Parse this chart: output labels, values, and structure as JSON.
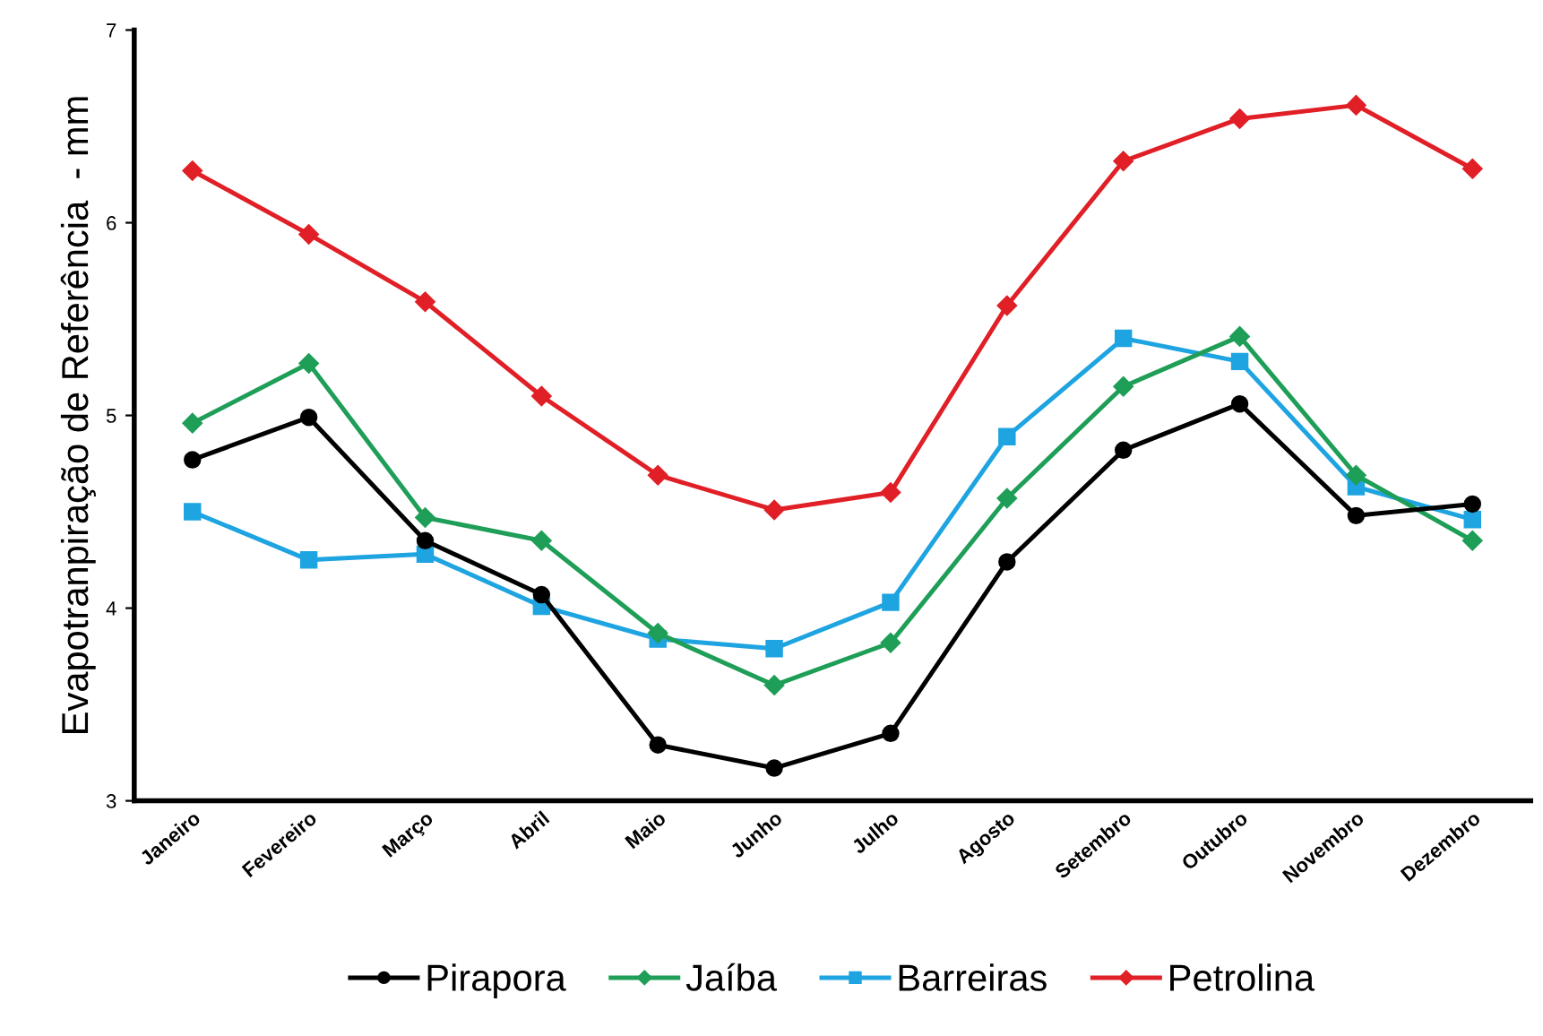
{
  "chart_data": {
    "type": "line",
    "ylabel": "Evapotranpiração de Referência  - mm",
    "categories": [
      "Janeiro",
      "Fevereiro",
      "Março",
      "Abril",
      "Maio",
      "Junho",
      "Julho",
      "Agosto",
      "Setembro",
      "Outubro",
      "Novembro",
      "Dezembro"
    ],
    "series": [
      {
        "name": "Pirapora",
        "color": "#000000",
        "marker": "circle",
        "values": [
          4.77,
          4.99,
          4.35,
          4.07,
          3.29,
          3.17,
          3.35,
          4.24,
          4.82,
          5.06,
          4.48,
          4.54
        ]
      },
      {
        "name": "Jaíba",
        "color": "#1e9e57",
        "marker": "diamond",
        "values": [
          4.96,
          5.27,
          4.47,
          4.35,
          3.87,
          3.6,
          3.82,
          4.57,
          5.15,
          5.41,
          4.69,
          4.35
        ]
      },
      {
        "name": "Barreiras",
        "color": "#1ea4e0",
        "marker": "square",
        "values": [
          4.5,
          4.25,
          4.28,
          4.01,
          3.84,
          3.79,
          4.03,
          4.89,
          5.4,
          5.28,
          4.63,
          4.46
        ]
      },
      {
        "name": "Petrolina",
        "color": "#e01f26",
        "marker": "diamond",
        "values": [
          6.27,
          5.94,
          5.59,
          5.1,
          4.69,
          4.51,
          4.6,
          5.57,
          6.32,
          6.54,
          6.61,
          6.28
        ]
      }
    ],
    "ylim": [
      3,
      7
    ],
    "yticks": [
      3,
      4,
      5,
      6,
      7
    ],
    "grid": false,
    "legend": "bottom"
  }
}
